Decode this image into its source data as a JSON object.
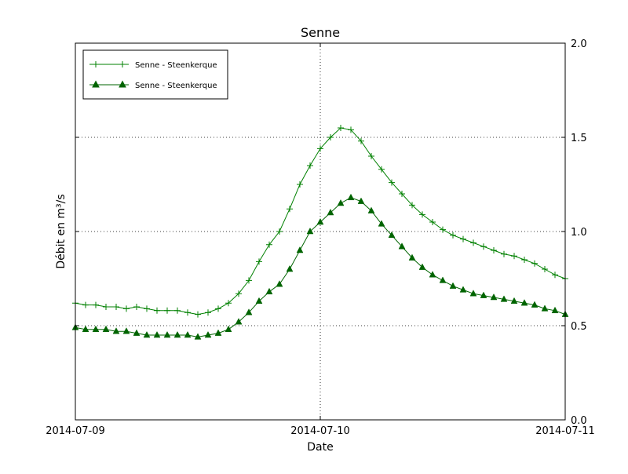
{
  "chart_data": {
    "type": "line",
    "title": "Senne",
    "xlabel": "Date",
    "ylabel": "Débit en m³/s",
    "x_tick_labels": [
      "2014-07-09",
      "2014-07-10",
      "2014-07-11"
    ],
    "y_tick_labels": [
      "0.0",
      "0.5",
      "1.0",
      "1.5",
      "2.0"
    ],
    "ylim": [
      0.0,
      2.0
    ],
    "x_span_hours": 48,
    "grid": true,
    "grid_y_values": [
      0.5,
      1.0,
      1.5
    ],
    "grid_x_hours": [
      24
    ],
    "legend_position": "upper-left",
    "frame_color": "#000000",
    "series": [
      {
        "name": "Senne - Steenkerque",
        "marker": "plus",
        "color": "#008000",
        "x_hours": [
          0,
          1,
          2,
          3,
          4,
          5,
          6,
          7,
          8,
          9,
          10,
          11,
          12,
          13,
          14,
          15,
          16,
          17,
          18,
          19,
          20,
          21,
          22,
          23,
          24,
          25,
          26,
          27,
          28,
          29,
          30,
          31,
          32,
          33,
          34,
          35,
          36,
          37,
          38,
          39,
          40,
          41,
          42,
          43,
          44,
          45,
          46,
          47,
          48
        ],
        "values": [
          0.62,
          0.61,
          0.61,
          0.6,
          0.6,
          0.59,
          0.6,
          0.59,
          0.58,
          0.58,
          0.58,
          0.57,
          0.56,
          0.57,
          0.59,
          0.62,
          0.67,
          0.74,
          0.84,
          0.93,
          1.0,
          1.12,
          1.25,
          1.35,
          1.44,
          1.5,
          1.55,
          1.54,
          1.48,
          1.4,
          1.33,
          1.26,
          1.2,
          1.14,
          1.09,
          1.05,
          1.01,
          0.98,
          0.96,
          0.94,
          0.92,
          0.9,
          0.88,
          0.87,
          0.85,
          0.83,
          0.8,
          0.77,
          0.75
        ]
      },
      {
        "name": "Senne - Steenkerque",
        "marker": "triangle",
        "color": "#006400",
        "x_hours": [
          0,
          1,
          2,
          3,
          4,
          5,
          6,
          7,
          8,
          9,
          10,
          11,
          12,
          13,
          14,
          15,
          16,
          17,
          18,
          19,
          20,
          21,
          22,
          23,
          24,
          25,
          26,
          27,
          28,
          29,
          30,
          31,
          32,
          33,
          34,
          35,
          36,
          37,
          38,
          39,
          40,
          41,
          42,
          43,
          44,
          45,
          46,
          47,
          48
        ],
        "values": [
          0.49,
          0.48,
          0.48,
          0.48,
          0.47,
          0.47,
          0.46,
          0.45,
          0.45,
          0.45,
          0.45,
          0.45,
          0.44,
          0.45,
          0.46,
          0.48,
          0.52,
          0.57,
          0.63,
          0.68,
          0.72,
          0.8,
          0.9,
          1.0,
          1.05,
          1.1,
          1.15,
          1.18,
          1.16,
          1.11,
          1.04,
          0.98,
          0.92,
          0.86,
          0.81,
          0.77,
          0.74,
          0.71,
          0.69,
          0.67,
          0.66,
          0.65,
          0.64,
          0.63,
          0.62,
          0.61,
          0.59,
          0.58,
          0.56
        ]
      }
    ]
  }
}
